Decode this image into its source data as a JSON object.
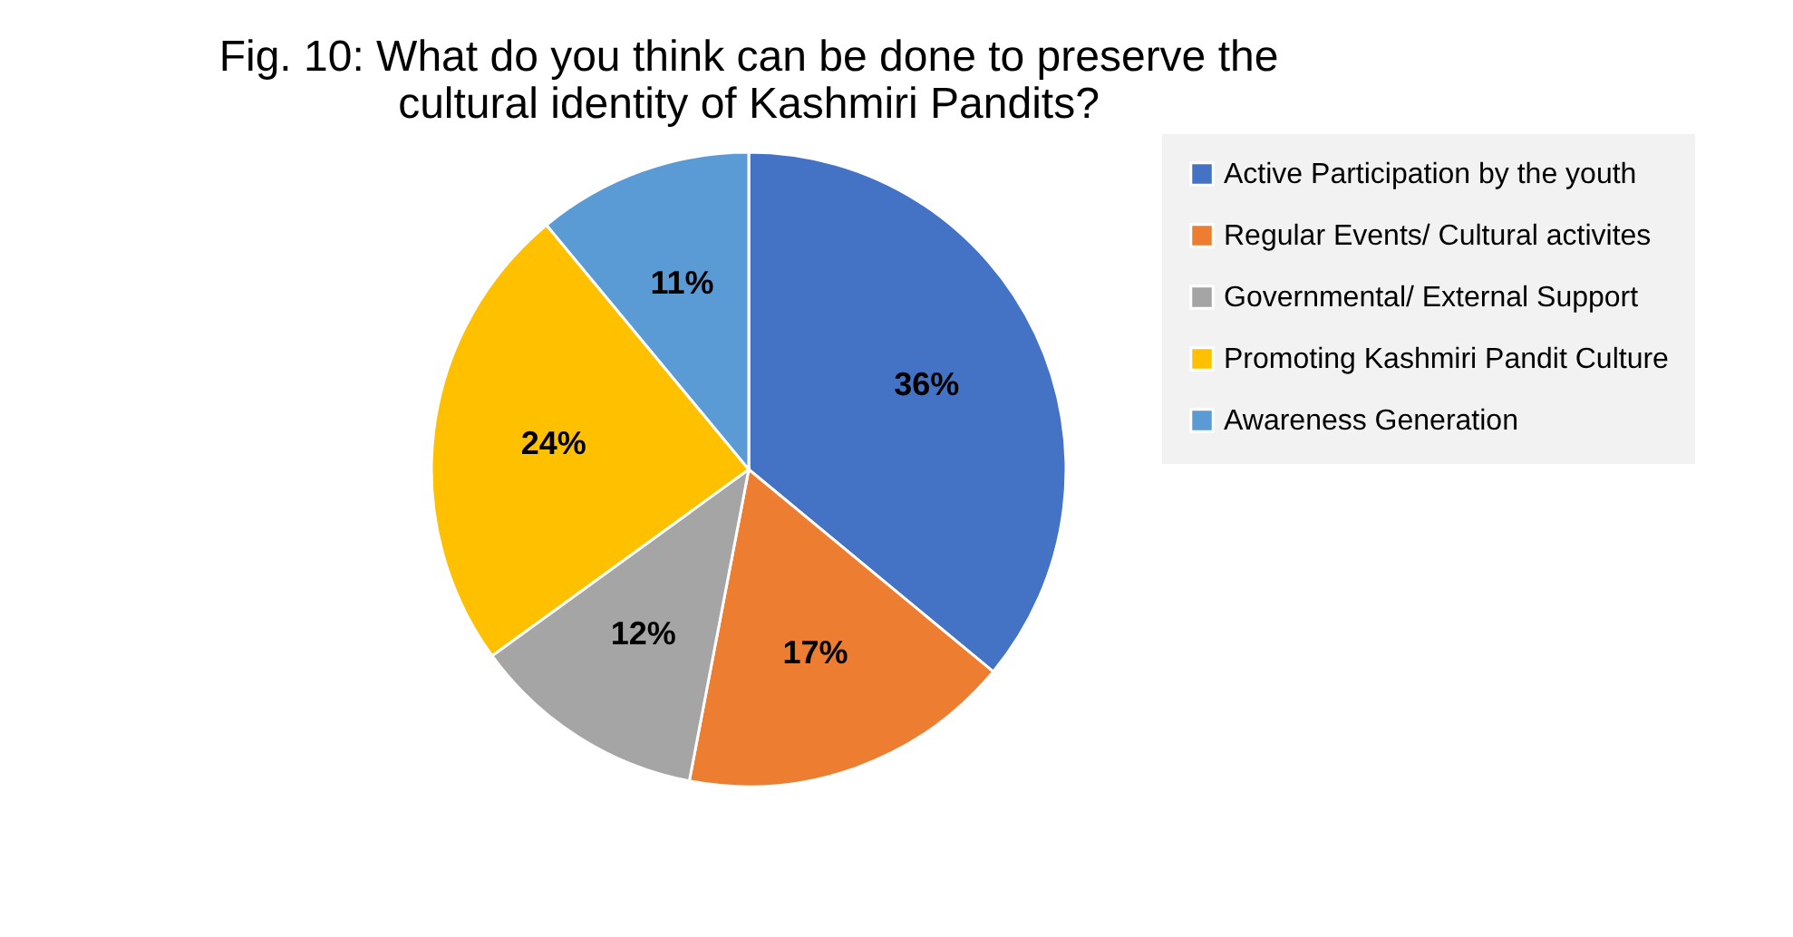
{
  "chart_data": {
    "type": "pie",
    "title": "Fig. 10: What do you think can be done to preserve the cultural identity of Kashmiri Pandits?",
    "categories": [
      "Active Participation by the youth",
      "Regular Events/ Cultural activites",
      "Governmental/ External Support",
      "Promoting Kashmiri Pandit Culture",
      "Awareness Generation"
    ],
    "values": [
      36,
      17,
      12,
      24,
      11
    ],
    "colors": [
      "#4472c4",
      "#ed7d31",
      "#a5a5a5",
      "#ffc000",
      "#5b9bd5"
    ],
    "value_labels": [
      "36%",
      "17%",
      "12%",
      "24%",
      "11%"
    ],
    "legend": "right"
  }
}
